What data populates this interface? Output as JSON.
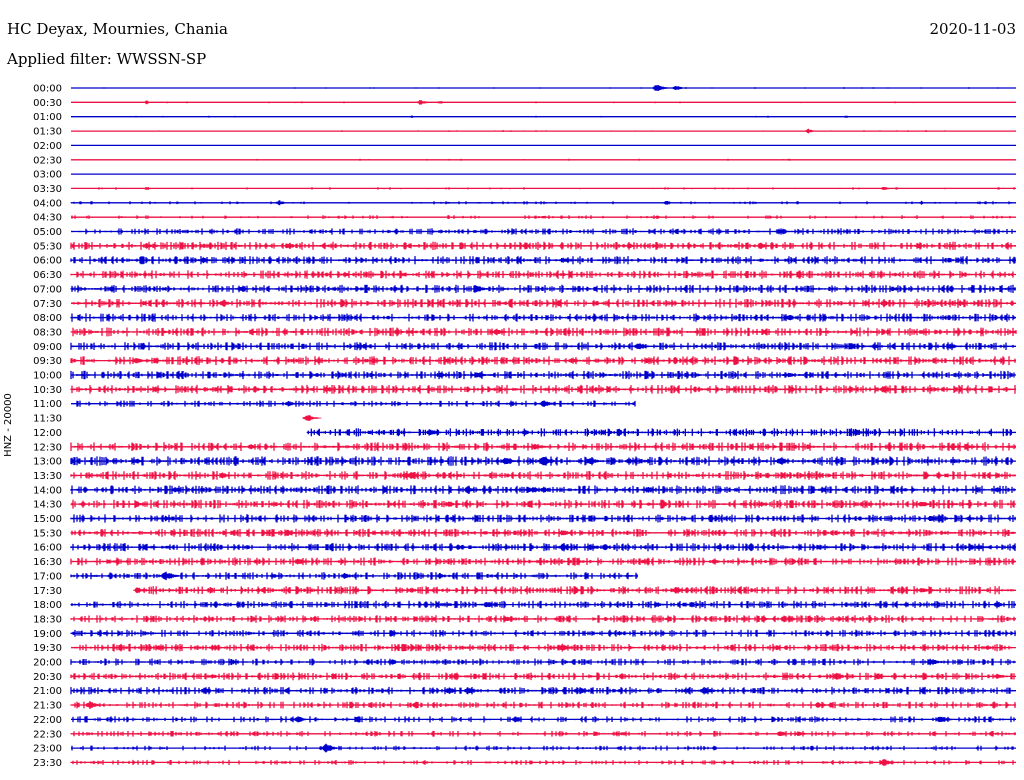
{
  "header": {
    "station": "HC Deyax, Mournies, Chania",
    "date": "2020-11-03",
    "filter": "Applied filter: WWSSN-SP"
  },
  "chart_data": {
    "type": "line",
    "ylabel": "HNZ - 20000",
    "colors": [
      "#0000cc",
      "#ee1144"
    ],
    "rows": [
      {
        "label": "00:00",
        "color": "#0000cc",
        "amp": 0.3,
        "burst": 0.05,
        "start": 0.0,
        "end": 1.0,
        "events": [
          [
            0.62,
            4
          ],
          [
            0.64,
            3
          ]
        ]
      },
      {
        "label": "00:30",
        "color": "#ee1144",
        "amp": 0.3,
        "burst": 0.05,
        "start": 0.0,
        "end": 1.0,
        "events": [
          [
            0.08,
            2
          ],
          [
            0.37,
            3
          ],
          [
            0.39,
            2
          ]
        ]
      },
      {
        "label": "01:00",
        "color": "#0000cc",
        "amp": 0.3,
        "burst": 0.05,
        "start": 0.0,
        "end": 1.0,
        "events": [
          [
            0.36,
            1.5
          ],
          [
            0.82,
            1.5
          ]
        ]
      },
      {
        "label": "01:30",
        "color": "#ee1144",
        "amp": 0.3,
        "burst": 0.05,
        "start": 0.0,
        "end": 1.0,
        "events": [
          [
            0.78,
            2.5
          ]
        ]
      },
      {
        "label": "02:00",
        "color": "#0000cc",
        "amp": 0.2,
        "burst": 0.03,
        "start": 0.0,
        "end": 1.0,
        "events": []
      },
      {
        "label": "02:30",
        "color": "#ee1144",
        "amp": 0.3,
        "burst": 0.04,
        "start": 0.0,
        "end": 1.0,
        "events": [
          [
            0.76,
            1.5
          ]
        ]
      },
      {
        "label": "03:00",
        "color": "#0000cc",
        "amp": 0.2,
        "burst": 0.03,
        "start": 0.0,
        "end": 1.0,
        "events": []
      },
      {
        "label": "03:30",
        "color": "#ee1144",
        "amp": 0.4,
        "burst": 0.08,
        "start": 0.0,
        "end": 1.0,
        "events": [
          [
            0.08,
            2
          ],
          [
            0.86,
            2.5
          ]
        ]
      },
      {
        "label": "04:00",
        "color": "#0000cc",
        "amp": 0.5,
        "burst": 0.12,
        "start": 0.0,
        "end": 1.0,
        "events": [
          [
            0.22,
            3
          ],
          [
            0.63,
            2.5
          ],
          [
            0.9,
            2
          ]
        ]
      },
      {
        "label": "04:30",
        "color": "#ee1144",
        "amp": 0.6,
        "burst": 0.15,
        "start": 0.0,
        "end": 1.0,
        "events": [
          [
            0.5,
            2
          ],
          [
            0.62,
            2
          ]
        ]
      },
      {
        "label": "05:00",
        "color": "#0000cc",
        "amp": 1.0,
        "burst": 0.35,
        "start": 0.0,
        "end": 1.0,
        "events": [
          [
            0.64,
            2
          ],
          [
            0.75,
            3
          ]
        ]
      },
      {
        "label": "05:30",
        "color": "#ee1144",
        "amp": 1.3,
        "burst": 0.4,
        "start": 0.0,
        "end": 1.0,
        "events": [
          [
            0.08,
            3
          ],
          [
            0.23,
            3.5
          ],
          [
            0.73,
            3.5
          ]
        ]
      },
      {
        "label": "06:00",
        "color": "#0000cc",
        "amp": 1.3,
        "burst": 0.4,
        "start": 0.0,
        "end": 1.0,
        "events": [
          [
            0.14,
            3
          ],
          [
            0.52,
            3
          ]
        ]
      },
      {
        "label": "06:30",
        "color": "#ee1144",
        "amp": 1.3,
        "burst": 0.4,
        "start": 0.0,
        "end": 1.0,
        "events": [
          [
            0.29,
            2.5
          ],
          [
            0.66,
            2.5
          ]
        ]
      },
      {
        "label": "07:00",
        "color": "#0000cc",
        "amp": 1.3,
        "burst": 0.4,
        "start": 0.0,
        "end": 1.0,
        "events": [
          [
            0.18,
            3
          ],
          [
            0.43,
            4
          ],
          [
            0.87,
            3
          ]
        ]
      },
      {
        "label": "07:30",
        "color": "#ee1144",
        "amp": 1.4,
        "burst": 0.4,
        "start": 0.0,
        "end": 1.0,
        "events": [
          [
            0.16,
            3.5
          ],
          [
            0.86,
            3.5
          ],
          [
            0.94,
            3.5
          ]
        ]
      },
      {
        "label": "08:00",
        "color": "#0000cc",
        "amp": 1.3,
        "burst": 0.4,
        "start": 0.0,
        "end": 1.0,
        "events": [
          [
            0.76,
            3.5
          ]
        ]
      },
      {
        "label": "08:30",
        "color": "#ee1144",
        "amp": 1.4,
        "burst": 0.4,
        "start": 0.0,
        "end": 1.0,
        "events": [
          [
            0.45,
            4
          ],
          [
            0.9,
            3
          ],
          [
            1.0,
            3
          ]
        ]
      },
      {
        "label": "09:00",
        "color": "#0000cc",
        "amp": 1.3,
        "burst": 0.4,
        "start": 0.0,
        "end": 1.0,
        "events": [
          [
            0.31,
            3
          ],
          [
            0.6,
            4
          ],
          [
            0.85,
            3
          ],
          [
            0.93,
            3.5
          ]
        ]
      },
      {
        "label": "09:30",
        "color": "#ee1144",
        "amp": 1.4,
        "burst": 0.4,
        "start": 0.0,
        "end": 1.0,
        "events": [
          [
            0.07,
            3
          ],
          [
            0.53,
            3.5
          ],
          [
            0.61,
            3
          ]
        ]
      },
      {
        "label": "10:00",
        "color": "#0000cc",
        "amp": 1.3,
        "burst": 0.4,
        "start": 0.0,
        "end": 1.0,
        "events": [
          [
            0.39,
            3.5
          ],
          [
            0.43,
            4
          ],
          [
            0.76,
            3
          ]
        ]
      },
      {
        "label": "10:30",
        "color": "#ee1144",
        "amp": 1.4,
        "burst": 0.4,
        "start": 0.0,
        "end": 1.0,
        "events": [
          [
            0.09,
            3
          ],
          [
            0.27,
            3.5
          ],
          [
            0.86,
            4
          ]
        ]
      },
      {
        "label": "11:00",
        "color": "#0000cc",
        "amp": 1.0,
        "burst": 0.3,
        "start": 0.0,
        "end": 0.597,
        "events": [
          [
            0.23,
            3
          ],
          [
            0.5,
            4
          ]
        ]
      },
      {
        "label": "11:30",
        "color": "#ee1144",
        "amp": 1.0,
        "burst": 0.3,
        "start": 0.25,
        "end": 0.25,
        "events": [
          [
            0.25,
            4
          ]
        ]
      },
      {
        "label": "12:00",
        "color": "#0000cc",
        "amp": 1.3,
        "burst": 0.4,
        "start": 0.25,
        "end": 1.0,
        "events": [
          [
            0.38,
            4
          ],
          [
            0.48,
            3
          ],
          [
            0.83,
            3.5
          ]
        ]
      },
      {
        "label": "12:30",
        "color": "#ee1144",
        "amp": 1.4,
        "burst": 0.4,
        "start": 0.0,
        "end": 1.0,
        "events": [
          [
            0.19,
            3
          ],
          [
            0.49,
            3.5
          ],
          [
            0.95,
            2.5
          ]
        ]
      },
      {
        "label": "13:00",
        "color": "#0000cc",
        "amp": 1.5,
        "burst": 0.45,
        "start": 0.0,
        "end": 1.0,
        "events": [
          [
            0.07,
            3
          ],
          [
            0.46,
            4
          ],
          [
            0.5,
            5
          ],
          [
            0.55,
            4
          ],
          [
            0.59,
            3.5
          ],
          [
            0.75,
            4.5
          ]
        ]
      },
      {
        "label": "13:30",
        "color": "#ee1144",
        "amp": 1.4,
        "burst": 0.4,
        "start": 0.0,
        "end": 1.0,
        "events": [
          [
            0.16,
            3.5
          ],
          [
            0.36,
            4
          ],
          [
            0.98,
            2.5
          ]
        ]
      },
      {
        "label": "14:00",
        "color": "#0000cc",
        "amp": 1.4,
        "burst": 0.45,
        "start": 0.0,
        "end": 1.0,
        "events": [
          [
            0.11,
            3
          ],
          [
            0.42,
            4
          ],
          [
            0.49,
            3.5
          ],
          [
            0.5,
            3.5
          ],
          [
            0.61,
            3.5
          ],
          [
            0.98,
            3
          ]
        ]
      },
      {
        "label": "14:30",
        "color": "#ee1144",
        "amp": 1.4,
        "burst": 0.4,
        "start": 0.0,
        "end": 1.0,
        "events": [
          [
            0.07,
            3
          ],
          [
            0.4,
            3
          ],
          [
            0.73,
            3
          ],
          [
            0.9,
            3.5
          ]
        ]
      },
      {
        "label": "15:00",
        "color": "#0000cc",
        "amp": 1.3,
        "burst": 0.4,
        "start": 0.0,
        "end": 1.0,
        "events": [
          [
            0.1,
            3
          ],
          [
            0.91,
            3.5
          ],
          [
            0.95,
            3
          ]
        ]
      },
      {
        "label": "15:30",
        "color": "#ee1144",
        "amp": 1.3,
        "burst": 0.4,
        "start": 0.0,
        "end": 1.0,
        "events": [
          [
            0.23,
            3
          ],
          [
            0.52,
            4
          ]
        ]
      },
      {
        "label": "16:00",
        "color": "#0000cc",
        "amp": 1.3,
        "burst": 0.4,
        "start": 0.0,
        "end": 1.0,
        "events": [
          [
            0.41,
            3
          ],
          [
            0.52,
            4
          ],
          [
            0.55,
            3.5
          ],
          [
            0.96,
            3
          ]
        ]
      },
      {
        "label": "16:30",
        "color": "#ee1144",
        "amp": 1.3,
        "burst": 0.4,
        "start": 0.0,
        "end": 1.0,
        "events": [
          [
            0.24,
            4
          ],
          [
            0.68,
            3
          ]
        ]
      },
      {
        "label": "17:00",
        "color": "#0000cc",
        "amp": 1.2,
        "burst": 0.35,
        "start": 0.0,
        "end": 0.6,
        "events": [
          [
            0.1,
            5
          ],
          [
            0.29,
            3.5
          ],
          [
            0.39,
            3
          ]
        ]
      },
      {
        "label": "17:30",
        "color": "#ee1144",
        "amp": 1.3,
        "burst": 0.4,
        "start": 0.07,
        "end": 1.0,
        "events": [
          [
            0.07,
            3
          ],
          [
            0.36,
            3
          ],
          [
            0.64,
            3.5
          ],
          [
            0.9,
            3.5
          ]
        ]
      },
      {
        "label": "18:00",
        "color": "#0000cc",
        "amp": 1.2,
        "burst": 0.4,
        "start": 0.0,
        "end": 1.0,
        "events": [
          [
            0.44,
            4
          ],
          [
            0.62,
            3
          ],
          [
            0.98,
            3
          ]
        ]
      },
      {
        "label": "18:30",
        "color": "#ee1144",
        "amp": 1.2,
        "burst": 0.4,
        "start": 0.0,
        "end": 1.0,
        "events": [
          [
            0.46,
            3.5
          ]
        ]
      },
      {
        "label": "19:00",
        "color": "#0000cc",
        "amp": 1.1,
        "burst": 0.35,
        "start": 0.0,
        "end": 1.0,
        "events": [
          [
            0.34,
            3
          ],
          [
            0.58,
            2.5
          ]
        ]
      },
      {
        "label": "19:30",
        "color": "#ee1144",
        "amp": 1.2,
        "burst": 0.4,
        "start": 0.0,
        "end": 1.0,
        "events": [
          [
            0.15,
            3.5
          ],
          [
            0.52,
            4
          ],
          [
            0.97,
            2.5
          ]
        ]
      },
      {
        "label": "20:00",
        "color": "#0000cc",
        "amp": 1.1,
        "burst": 0.35,
        "start": 0.0,
        "end": 1.0,
        "events": [
          [
            0.17,
            3
          ],
          [
            0.34,
            3
          ],
          [
            0.91,
            4
          ]
        ]
      },
      {
        "label": "20:30",
        "color": "#ee1144",
        "amp": 1.2,
        "burst": 0.4,
        "start": 0.0,
        "end": 1.0,
        "events": [
          [
            0.15,
            2.5
          ],
          [
            0.81,
            4
          ],
          [
            0.98,
            3
          ]
        ]
      },
      {
        "label": "21:00",
        "color": "#0000cc",
        "amp": 1.2,
        "burst": 0.4,
        "start": 0.0,
        "end": 1.0,
        "events": [
          [
            0.4,
            3.5
          ],
          [
            0.42,
            4
          ],
          [
            0.54,
            3
          ],
          [
            0.65,
            3
          ],
          [
            0.67,
            4
          ]
        ]
      },
      {
        "label": "21:30",
        "color": "#ee1144",
        "amp": 1.1,
        "burst": 0.35,
        "start": 0.0,
        "end": 1.0,
        "events": [
          [
            0.02,
            4
          ],
          [
            0.79,
            3
          ]
        ]
      },
      {
        "label": "22:00",
        "color": "#0000cc",
        "amp": 1.0,
        "burst": 0.3,
        "start": 0.0,
        "end": 1.0,
        "events": [
          [
            0.24,
            3.5
          ],
          [
            0.47,
            3
          ],
          [
            0.92,
            4.5
          ]
        ]
      },
      {
        "label": "22:30",
        "color": "#ee1144",
        "amp": 0.9,
        "burst": 0.3,
        "start": 0.0,
        "end": 1.0,
        "events": [
          [
            0.75,
            3
          ],
          [
            0.77,
            3
          ]
        ]
      },
      {
        "label": "23:00",
        "color": "#0000cc",
        "amp": 0.8,
        "burst": 0.25,
        "start": 0.0,
        "end": 1.0,
        "events": [
          [
            0.27,
            5
          ],
          [
            0.58,
            2
          ]
        ]
      },
      {
        "label": "23:30",
        "color": "#ee1144",
        "amp": 0.8,
        "burst": 0.25,
        "start": 0.0,
        "end": 1.0,
        "events": [
          [
            0.86,
            4
          ]
        ]
      }
    ]
  }
}
